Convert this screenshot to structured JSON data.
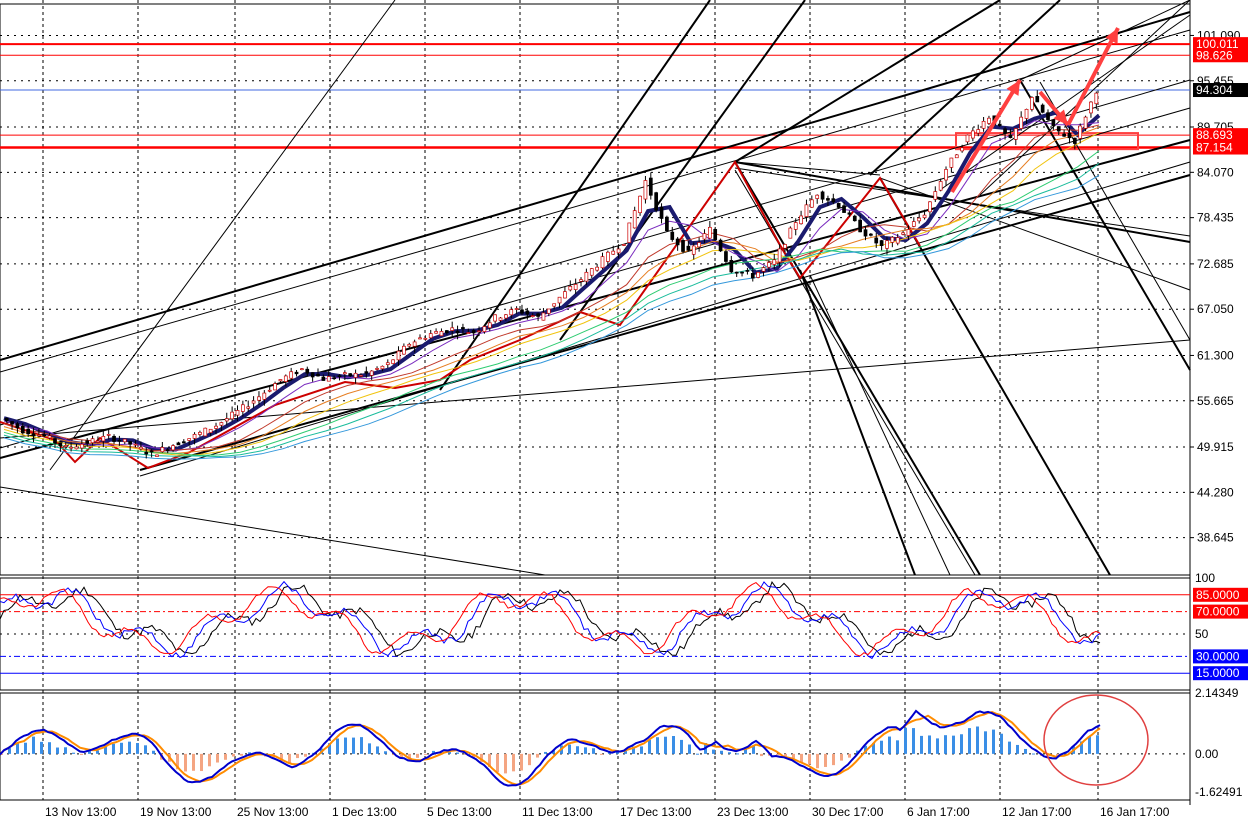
{
  "chart_data": [
    {
      "type": "candlestick",
      "panel": "price",
      "ylim": [
        34.0,
        105.0
      ],
      "y_tick_labels": [
        "101.090",
        "95.455",
        "89.705",
        "84.070",
        "78.435",
        "72.685",
        "67.050",
        "61.300",
        "55.665",
        "49.915",
        "44.280",
        "38.645"
      ],
      "y_tick_values": [
        101.09,
        95.455,
        89.705,
        84.07,
        78.435,
        72.685,
        67.05,
        61.3,
        55.665,
        49.915,
        44.28,
        38.645
      ],
      "price_badges": [
        {
          "label": "100.011",
          "value": 100.011,
          "color": "#ff0000"
        },
        {
          "label": "98.626",
          "value": 98.626,
          "color": "#ff0000"
        },
        {
          "label": "94.304",
          "value": 94.304,
          "color": "#000000"
        },
        {
          "label": "88.693",
          "value": 88.693,
          "color": "#ff0000"
        },
        {
          "label": "87.154",
          "value": 87.154,
          "color": "#ff0000"
        }
      ],
      "horizontal_levels": [
        {
          "value": 100.011,
          "color": "#ff0000",
          "width": 2
        },
        {
          "value": 98.626,
          "color": "#ff0000",
          "width": 1
        },
        {
          "value": 94.304,
          "color": "#4169e1",
          "width": 1
        },
        {
          "value": 88.693,
          "color": "#ff0000",
          "width": 1
        },
        {
          "value": 87.154,
          "color": "#ff0000",
          "width": 2.5
        }
      ],
      "x_tick_labels": [
        "13 Nov 13:00",
        "19 Nov 13:00",
        "25 Nov 13:00",
        "1 Dec 13:00",
        "5 Dec 13:00",
        "11 Dec 13:00",
        "17 Dec 13:00",
        "23 Dec 13:00",
        "30 Dec 17:00",
        "6 Jan 17:00",
        "12 Jan 17:00",
        "16 Jan 17:00"
      ],
      "close_path_points": [
        [
          0,
          53.5
        ],
        [
          1,
          52.0
        ],
        [
          2,
          51.3
        ],
        [
          3,
          49.8
        ],
        [
          4,
          50.5
        ],
        [
          5,
          51.2
        ],
        [
          6,
          50.3
        ],
        [
          7,
          49.0
        ],
        [
          8,
          50.2
        ],
        [
          9,
          51.3
        ],
        [
          10,
          52.6
        ],
        [
          11,
          54.3
        ],
        [
          12,
          56.2
        ],
        [
          13,
          58.3
        ],
        [
          14,
          59.6
        ],
        [
          15,
          58.4
        ],
        [
          16,
          58.8
        ],
        [
          17,
          59.0
        ],
        [
          18,
          60.2
        ],
        [
          19,
          62.8
        ],
        [
          20,
          64.0
        ],
        [
          21,
          64.6
        ],
        [
          22,
          64.2
        ],
        [
          23,
          66.0
        ],
        [
          24,
          67.0
        ],
        [
          25,
          66.0
        ],
        [
          26,
          68.5
        ],
        [
          27,
          70.8
        ],
        [
          28,
          73.2
        ],
        [
          29,
          75.5
        ],
        [
          30,
          83.0
        ],
        [
          31,
          76.5
        ],
        [
          32,
          74.0
        ],
        [
          33,
          77.0
        ],
        [
          34,
          72.0
        ],
        [
          35,
          71.2
        ],
        [
          36,
          73.0
        ],
        [
          37,
          78.0
        ],
        [
          38,
          81.5
        ],
        [
          39,
          80.0
        ],
        [
          40,
          77.0
        ],
        [
          41,
          74.8
        ],
        [
          42,
          76.5
        ],
        [
          43,
          79.0
        ],
        [
          44,
          84.5
        ],
        [
          45,
          88.5
        ],
        [
          46,
          91.0
        ],
        [
          47,
          88.0
        ],
        [
          48,
          93.5
        ],
        [
          49,
          89.5
        ],
        [
          50,
          88.0
        ],
        [
          51,
          94.3
        ]
      ]
    },
    {
      "type": "line",
      "panel": "oscillator",
      "ylim": [
        0,
        100
      ],
      "y_tick_labels": [
        "100",
        "50"
      ],
      "level_badges": [
        {
          "label": "85.0000",
          "value": 85,
          "color": "#ff0000"
        },
        {
          "label": "70.0000",
          "value": 70,
          "color": "#ff0000"
        },
        {
          "label": "30.0000",
          "value": 30,
          "color": "#0000ff"
        },
        {
          "label": "15.0000",
          "value": 15,
          "color": "#0000ff"
        }
      ]
    },
    {
      "type": "bar",
      "panel": "macd",
      "ylim": [
        -1.62491,
        2.14349
      ],
      "y_tick_labels": [
        "2.14349",
        "0.00",
        "-1.62491"
      ]
    }
  ]
}
